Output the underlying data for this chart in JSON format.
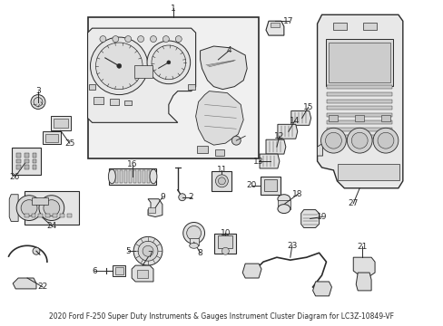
{
  "bg_color": "#ffffff",
  "line_color": "#2a2a2a",
  "fill_light": "#f5f5f5",
  "fill_med": "#e8e8e8",
  "fill_dark": "#d0d0d0",
  "title": "2020 Ford F-250 Super Duty Instruments & Gauges Instrument Cluster Diagram for LC3Z-10849-VF",
  "title_fontsize": 5.5
}
